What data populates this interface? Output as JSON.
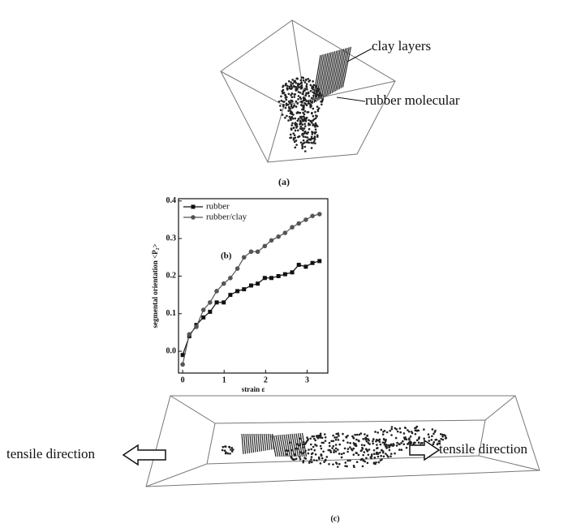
{
  "annotations": {
    "clay": "clay layers",
    "rubber": "rubber molecular",
    "label_a": "(a)",
    "label_c": "(c)",
    "tensile_left": "tensile direction",
    "tensile_right": "tensile direction"
  },
  "chart_data": {
    "type": "line",
    "panel_label": "(b)",
    "xlabel": "strain ε",
    "ylabel": "segmental orientation <P₂>",
    "x": [
      0,
      0.16,
      0.33,
      0.5,
      0.66,
      0.82,
      0.99,
      1.15,
      1.32,
      1.48,
      1.65,
      1.81,
      1.98,
      2.14,
      2.31,
      2.47,
      2.64,
      2.8,
      2.97,
      3.13,
      3.3
    ],
    "series": [
      {
        "name": "rubber",
        "color": "#111111",
        "marker": "square",
        "values": [
          -0.01,
          0.04,
          0.07,
          0.09,
          0.105,
          0.13,
          0.13,
          0.15,
          0.16,
          0.165,
          0.175,
          0.18,
          0.195,
          0.195,
          0.2,
          0.205,
          0.21,
          0.23,
          0.225,
          0.235,
          0.24
        ]
      },
      {
        "name": "rubber/clay",
        "color": "#555555",
        "marker": "circle",
        "values": [
          -0.035,
          0.045,
          0.065,
          0.11,
          0.13,
          0.16,
          0.18,
          0.195,
          0.22,
          0.25,
          0.265,
          0.265,
          0.28,
          0.295,
          0.305,
          0.315,
          0.33,
          0.34,
          0.35,
          0.36,
          0.365
        ]
      }
    ],
    "xlim": [
      -0.1,
      3.5
    ],
    "ylim": [
      -0.058,
      0.406
    ],
    "xticks": [
      0,
      1,
      2,
      3
    ],
    "yticks": [
      {
        "value": 0,
        "label": "0.0"
      },
      0.1,
      0.2,
      0.3,
      0.4
    ],
    "legend": "upper left"
  }
}
